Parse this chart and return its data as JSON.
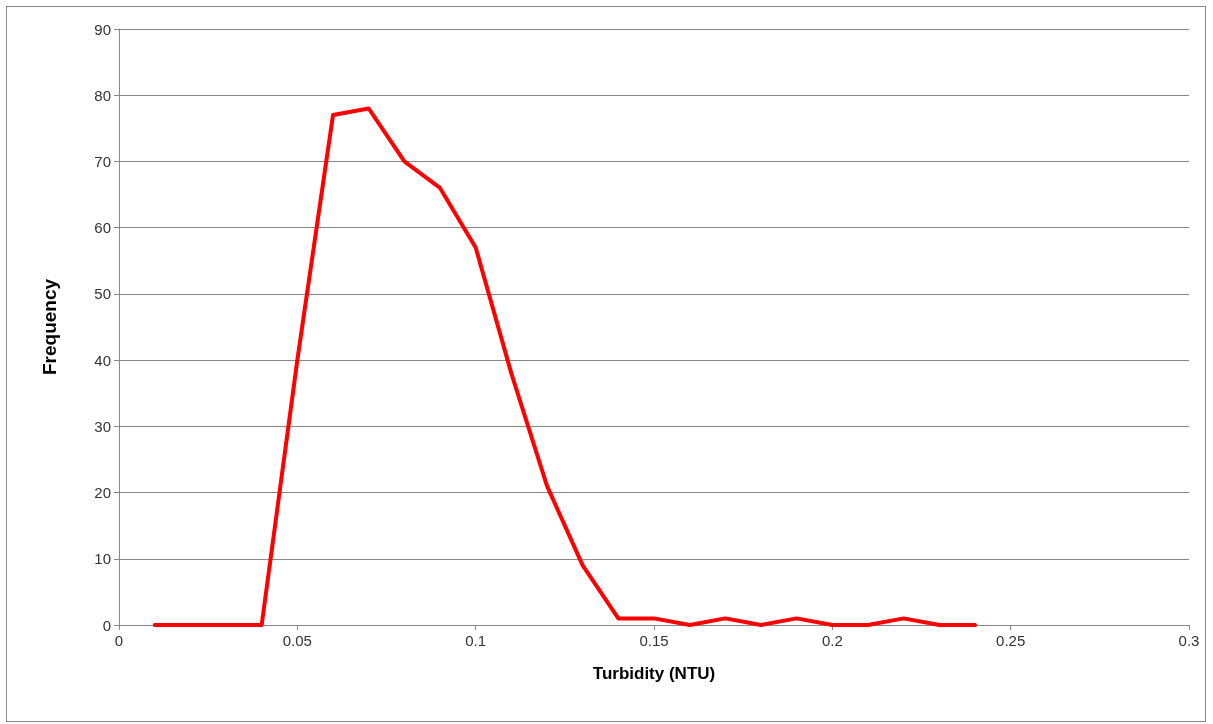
{
  "chart_data": {
    "type": "line",
    "xlabel": "Turbidity (NTU)",
    "ylabel": "Frequency",
    "x": [
      0.01,
      0.02,
      0.03,
      0.04,
      0.05,
      0.06,
      0.07,
      0.08,
      0.09,
      0.1,
      0.11,
      0.12,
      0.13,
      0.14,
      0.15,
      0.16,
      0.17,
      0.18,
      0.19,
      0.2,
      0.21,
      0.22,
      0.23,
      0.24
    ],
    "series": [
      {
        "color": "#ff0000",
        "values": [
          0,
          0,
          0,
          0,
          40,
          77,
          78,
          70,
          66,
          57,
          38,
          21,
          9,
          1,
          1,
          0,
          1,
          0,
          1,
          0,
          0,
          1,
          0,
          0
        ]
      }
    ],
    "xlim": [
      0,
      0.3
    ],
    "xticks": [
      0,
      0.05,
      0.1,
      0.15,
      0.2,
      0.25,
      0.3
    ],
    "ylim": [
      0,
      90
    ],
    "yticks": [
      0,
      10,
      20,
      30,
      40,
      50,
      60,
      70,
      80,
      90
    ],
    "grid": "y",
    "marker": "none",
    "line_style": "solid"
  }
}
